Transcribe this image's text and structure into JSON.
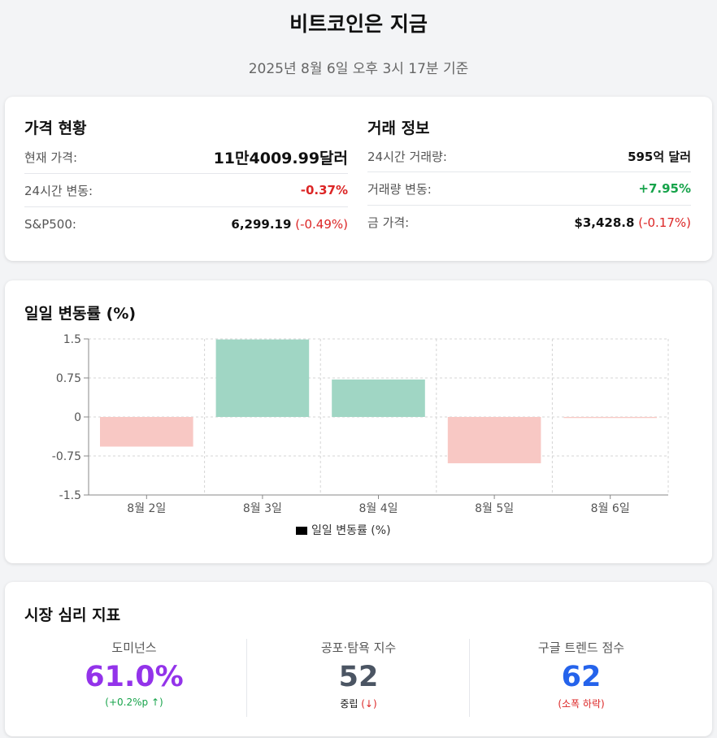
{
  "header": {
    "title": "비트코인은 지금",
    "subtitle": "2025년 8월 6일 오후 3시 17분 기준"
  },
  "price": {
    "title": "가격 현황",
    "rows": [
      {
        "label": "현재 가격:",
        "value": "11만4009.99달러"
      },
      {
        "label": "24시간 변동:",
        "value": "-0.37%"
      },
      {
        "label": "S&P500:",
        "value": "6,299.19",
        "change": "(-0.49%)"
      }
    ]
  },
  "trade": {
    "title": "거래 정보",
    "rows": [
      {
        "label": "24시간 거래량:",
        "value": "595억 달러"
      },
      {
        "label": "거래량 변동:",
        "value": "+7.95%"
      },
      {
        "label": "금 가격:",
        "value": "$3,428.8",
        "change": "(-0.17%)"
      }
    ]
  },
  "chart_data": {
    "type": "bar",
    "title": "일일 변동률 (%)",
    "categories": [
      "8월 2일",
      "8월 3일",
      "8월 4일",
      "8월 5일",
      "8월 6일"
    ],
    "series": [
      {
        "name": "일일 변동률 (%)",
        "values": [
          -0.57,
          1.49,
          0.72,
          -0.89,
          -0.02
        ]
      }
    ],
    "ylim": [
      -1.5,
      1.5
    ],
    "yticks": [
      "1.5",
      "0.75",
      "0",
      "-0.75",
      "-1.5"
    ],
    "grid": true,
    "legend": "bottom",
    "colors": {
      "positive": "#a0d6c4",
      "negative": "#f8c8c4",
      "legend_swatch": "#000000"
    }
  },
  "sentiment": {
    "title": "시장 심리 지표",
    "items": [
      {
        "label": "도미넌스",
        "value": "61.0%",
        "note": "(+0.2%p ↑)",
        "color": "#9333ea",
        "note_color": "#16a34a"
      },
      {
        "label": "공포·탐욕 지수",
        "value": "52",
        "note": "중립",
        "note_arrow": "(↓)",
        "color": "#4b5563",
        "note_color": "#111111",
        "arrow_color": "#dc2626"
      },
      {
        "label": "구글 트렌드 점수",
        "value": "62",
        "note": "(소폭 하락)",
        "color": "#2563eb",
        "note_color": "#dc2626"
      }
    ]
  }
}
